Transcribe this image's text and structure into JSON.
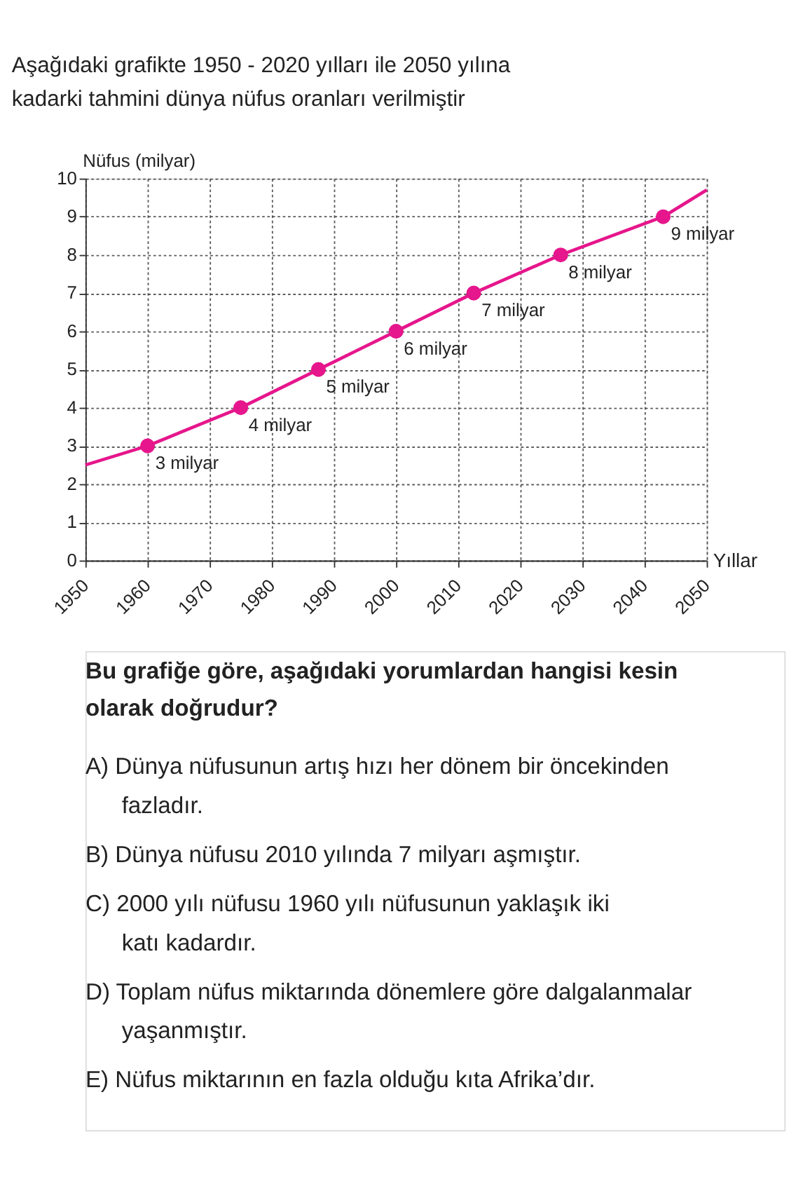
{
  "chart_data": {
    "type": "line",
    "title": "Aşağıdaki grafikte 1950 - 2020 yılları ile 2050 yılına kadarki tahmini dünya nüfus oranları verilmiştir",
    "xlabel": "Yıllar",
    "ylabel": "Nüfus (milyar)",
    "xlim": [
      1950,
      2050
    ],
    "xticks": [
      1950,
      1960,
      1970,
      1980,
      1990,
      2000,
      2010,
      2020,
      2030,
      2040,
      2050
    ],
    "ylim": [
      0,
      10
    ],
    "yticks": [
      0,
      1,
      2,
      3,
      4,
      5,
      6,
      7,
      8,
      9,
      10
    ],
    "grid": true,
    "series": [
      {
        "color": "#e6168c",
        "marker": "none",
        "x": [
          1950,
          1960,
          1975,
          1987.5,
          2000,
          2012.5,
          2026.5,
          2043,
          2050
        ],
        "values": [
          2.5,
          3,
          4,
          5,
          6,
          7,
          8,
          9,
          9.7
        ]
      },
      {
        "type": "scatter",
        "color": "#e6168c",
        "marker": "circle",
        "x": [
          1960,
          1975,
          1987.5,
          2000,
          2012.5,
          2026.5,
          2043
        ],
        "values": [
          3,
          4,
          5,
          6,
          7,
          8,
          9
        ],
        "value_labels": [
          "3 milyar",
          "4 milyar",
          "5 milyar",
          "6 milyar",
          "7 milyar",
          "8 milyar",
          "9 milyar"
        ]
      }
    ],
    "annotations": [
      "Bu grafiğe göre, aşağıdaki yorumlardan hangisi kesin olarak doğrudur?",
      "A) Dünya nüfusunun artış hızı her dönem bir öncekinden fazladır.",
      "B) Dünya nüfusu 2010 yılında 7 milyarı aşmıştır.",
      "C) 2000 yılı nüfusu 1960 yılı nüfusunun yaklaşık iki katı kadardır.",
      "D) Toplam nüfus miktarında dönemlere göre dalgalanmalar yaşanmıştır.",
      "E) Nüfus miktarının en fazla olduğu kıta Afrika’dır."
    ]
  }
}
